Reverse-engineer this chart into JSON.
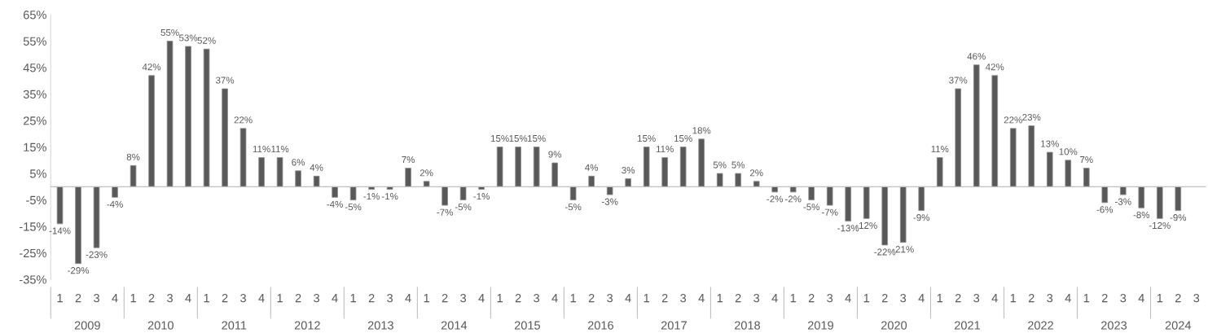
{
  "chart_data": {
    "type": "bar",
    "categories": [
      "1",
      "2",
      "3",
      "4",
      "1",
      "2",
      "3",
      "4",
      "1",
      "2",
      "3",
      "4",
      "1",
      "2",
      "3",
      "4",
      "1",
      "2",
      "3",
      "4",
      "1",
      "2",
      "3",
      "4",
      "1",
      "2",
      "3",
      "4",
      "1",
      "2",
      "3",
      "4",
      "1",
      "2",
      "3",
      "4",
      "1",
      "2",
      "3",
      "4",
      "1",
      "2",
      "3",
      "4",
      "1",
      "2",
      "3",
      "4",
      "1",
      "2",
      "3",
      "4",
      "1",
      "2",
      "3",
      "4",
      "1",
      "2",
      "3",
      "4",
      "1",
      "2",
      "3"
    ],
    "values": [
      -14,
      -29,
      -23,
      -4,
      8,
      42,
      55,
      53,
      52,
      37,
      22,
      11,
      11,
      6,
      4,
      -4,
      -5,
      -1,
      -1,
      7,
      2,
      -7,
      -5,
      -1,
      15,
      15,
      15,
      9,
      -5,
      4,
      -3,
      3,
      15,
      11,
      15,
      18,
      5,
      5,
      2,
      -2,
      -2,
      -5,
      -7,
      -13,
      -12,
      -22,
      -21,
      -9,
      11,
      37,
      46,
      42,
      22,
      23,
      13,
      10,
      7,
      -6,
      -3,
      -8,
      -12,
      -9,
      null
    ],
    "value_labels": [
      "-14%",
      "-29%",
      "-23%",
      "-4%",
      "8%",
      "42%",
      "55%",
      "53%",
      "52%",
      "37%",
      "22%",
      "11%",
      "11%",
      "6%",
      "4%",
      "-4%",
      "-5%",
      "-1%",
      "-1%",
      "7%",
      "2%",
      "-7%",
      "-5%",
      "-1%",
      "15%",
      "15%",
      "15%",
      "9%",
      "-5%",
      "4%",
      "-3%",
      "3%",
      "15%",
      "11%",
      "15%",
      "18%",
      "5%",
      "5%",
      "2%",
      "-2%",
      "-2%",
      "-5%",
      "-7%",
      "-13%",
      "-12%",
      "-22%",
      "-21%",
      "-9%",
      "11%",
      "37%",
      "46%",
      "42%",
      "22%",
      "23%",
      "13%",
      "10%",
      "7%",
      "-6%",
      "-3%",
      "-8%",
      "-12%",
      "-9%",
      null
    ],
    "color": "#595959",
    "ylim": [
      -35,
      65
    ],
    "yticks": [
      {
        "value": -35,
        "label": "-35%"
      },
      {
        "value": -25,
        "label": "-25%"
      },
      {
        "value": -15,
        "label": "-15%"
      },
      {
        "value": -5,
        "label": "-5%"
      },
      {
        "value": 5,
        "label": "5%"
      },
      {
        "value": 15,
        "label": "15%"
      },
      {
        "value": 25,
        "label": "25%"
      },
      {
        "value": 35,
        "label": "35%"
      },
      {
        "value": 45,
        "label": "45%"
      },
      {
        "value": 55,
        "label": "55%"
      },
      {
        "value": 65,
        "label": "65%"
      }
    ],
    "annotations": [
      "2009",
      "2010",
      "2011",
      "2012",
      "2013",
      "2014",
      "2015",
      "2016",
      "2017",
      "2018",
      "2019",
      "2020",
      "2021",
      "2022",
      "2023",
      "2024"
    ],
    "grid": false,
    "legend": false
  }
}
